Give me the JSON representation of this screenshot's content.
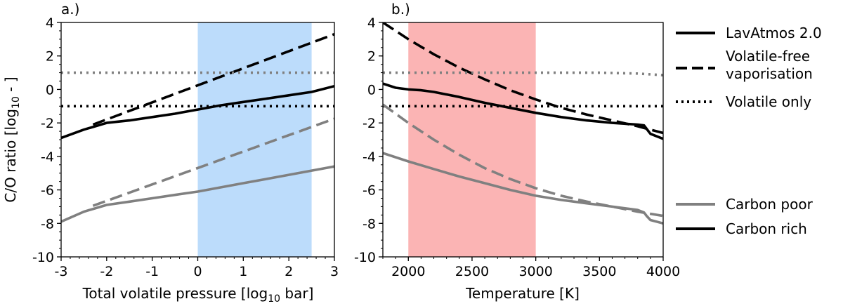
{
  "colors": {
    "black": "#000000",
    "gray": "#808080",
    "blue_band": "#bcdcfb",
    "red_band": "#fbb4b4"
  },
  "legend": {
    "styles": [
      "LavAtmos 2.0",
      "Volatile-free",
      "vaporisation",
      "Volatile only"
    ],
    "compositions": [
      "Carbon poor",
      "Carbon rich"
    ]
  },
  "chart_data": [
    {
      "type": "line",
      "panel_label": "a.)",
      "xlabel": "Total volatile pressure [log",
      "xlabel_sub": "10",
      "xlabel_end": " bar]",
      "ylabel": "C/O ratio [log",
      "ylabel_sub": "10",
      "ylabel_end": " - ]",
      "xlim": [
        -3,
        3
      ],
      "ylim": [
        -10,
        4
      ],
      "xticks": [
        "-3",
        "-2",
        "-1",
        "0",
        "1",
        "2",
        "3"
      ],
      "yticks": [
        "-10",
        "-8",
        "-6",
        "-4",
        "-2",
        "0",
        "2",
        "4"
      ],
      "shaded_region": {
        "x": [
          0,
          2.5
        ],
        "color": "blue"
      },
      "series": [
        {
          "name": "LavAtmos 2.0",
          "composition": "Carbon rich",
          "style": "solid",
          "color": "black",
          "x": [
            -3,
            -2.5,
            -2,
            -1.5,
            -1,
            -0.5,
            0,
            0.5,
            1,
            1.5,
            2,
            2.5,
            3
          ],
          "y": [
            -2.9,
            -2.4,
            -2.0,
            -1.85,
            -1.65,
            -1.45,
            -1.2,
            -0.95,
            -0.75,
            -0.55,
            -0.35,
            -0.15,
            0.2
          ]
        },
        {
          "name": "Volatile-free vaporisation",
          "composition": "Carbon rich",
          "style": "dashed",
          "color": "black",
          "x": [
            -2.3,
            3
          ],
          "y": [
            -2.1,
            3.3
          ]
        },
        {
          "name": "Volatile only",
          "composition": "Carbon rich",
          "style": "dotted",
          "color": "black",
          "x": [
            -3,
            3
          ],
          "y": [
            -1.0,
            -1.0
          ]
        },
        {
          "name": "LavAtmos 2.0",
          "composition": "Carbon poor",
          "style": "solid",
          "color": "gray",
          "x": [
            -3,
            -2.5,
            -2,
            -1.5,
            -1,
            -0.5,
            0,
            0.5,
            1,
            1.5,
            2,
            2.5,
            3
          ],
          "y": [
            -7.9,
            -7.3,
            -6.9,
            -6.7,
            -6.5,
            -6.3,
            -6.1,
            -5.85,
            -5.6,
            -5.35,
            -5.1,
            -4.85,
            -4.6
          ]
        },
        {
          "name": "Volatile-free vaporisation",
          "composition": "Carbon poor",
          "style": "dashed",
          "color": "gray",
          "x": [
            -2.3,
            3
          ],
          "y": [
            -6.95,
            -1.75
          ]
        },
        {
          "name": "Volatile only",
          "composition": "Carbon poor",
          "style": "dotted",
          "color": "gray",
          "x": [
            -3,
            3
          ],
          "y": [
            1.0,
            1.0
          ]
        }
      ]
    },
    {
      "type": "line",
      "panel_label": "b.)",
      "xlabel": "Temperature [K]",
      "xlim": [
        1800,
        4000
      ],
      "ylim": [
        -10,
        4
      ],
      "xticks": [
        "2000",
        "2500",
        "3000",
        "3500",
        "4000"
      ],
      "xtick_values": [
        2000,
        2500,
        3000,
        3500,
        4000
      ],
      "yticks": [
        "-10",
        "-8",
        "-6",
        "-4",
        "-2",
        "0",
        "2",
        "4"
      ],
      "shaded_region": {
        "x": [
          2000,
          3000
        ],
        "color": "red"
      },
      "series": [
        {
          "name": "LavAtmos 2.0",
          "composition": "Carbon rich",
          "style": "solid",
          "color": "black",
          "x": [
            1800,
            1900,
            2000,
            2100,
            2200,
            2400,
            2600,
            2800,
            3000,
            3200,
            3400,
            3600,
            3800,
            3850,
            3870,
            3900,
            4000
          ],
          "y": [
            0.35,
            0.1,
            0.0,
            -0.05,
            -0.15,
            -0.45,
            -0.8,
            -1.1,
            -1.4,
            -1.65,
            -1.85,
            -2.0,
            -2.1,
            -2.15,
            -2.35,
            -2.65,
            -2.95
          ]
        },
        {
          "name": "Volatile-free vaporisation",
          "composition": "Carbon rich",
          "style": "dashed",
          "color": "black",
          "x": [
            1800,
            2000,
            2200,
            2400,
            2600,
            2800,
            3000,
            3200,
            3400,
            3600,
            3800,
            4000
          ],
          "y": [
            4.0,
            3.0,
            2.1,
            1.3,
            0.6,
            -0.05,
            -0.6,
            -1.1,
            -1.5,
            -1.85,
            -2.2,
            -2.6
          ]
        },
        {
          "name": "Volatile only",
          "composition": "Carbon rich",
          "style": "dotted",
          "color": "black",
          "x": [
            1800,
            4000
          ],
          "y": [
            -1.0,
            -1.0
          ]
        },
        {
          "name": "LavAtmos 2.0",
          "composition": "Carbon poor",
          "style": "solid",
          "color": "gray",
          "x": [
            1800,
            2000,
            2200,
            2400,
            2600,
            2800,
            3000,
            3200,
            3400,
            3600,
            3800,
            3850,
            3870,
            3900,
            4000
          ],
          "y": [
            -3.8,
            -4.3,
            -4.75,
            -5.2,
            -5.6,
            -6.0,
            -6.35,
            -6.6,
            -6.8,
            -7.0,
            -7.2,
            -7.35,
            -7.55,
            -7.8,
            -8.0
          ]
        },
        {
          "name": "Volatile-free vaporisation",
          "composition": "Carbon poor",
          "style": "dashed",
          "color": "gray",
          "x": [
            1800,
            2000,
            2200,
            2400,
            2600,
            2800,
            3000,
            3200,
            3400,
            3600,
            3800,
            4000
          ],
          "y": [
            -0.9,
            -2.0,
            -3.0,
            -3.9,
            -4.7,
            -5.35,
            -5.9,
            -6.35,
            -6.7,
            -7.0,
            -7.3,
            -7.55
          ]
        },
        {
          "name": "Volatile only",
          "composition": "Carbon poor",
          "style": "dotted",
          "color": "gray",
          "x": [
            1800,
            3000,
            3500,
            3800,
            4000
          ],
          "y": [
            1.0,
            1.0,
            1.0,
            0.95,
            0.85
          ]
        }
      ]
    }
  ]
}
